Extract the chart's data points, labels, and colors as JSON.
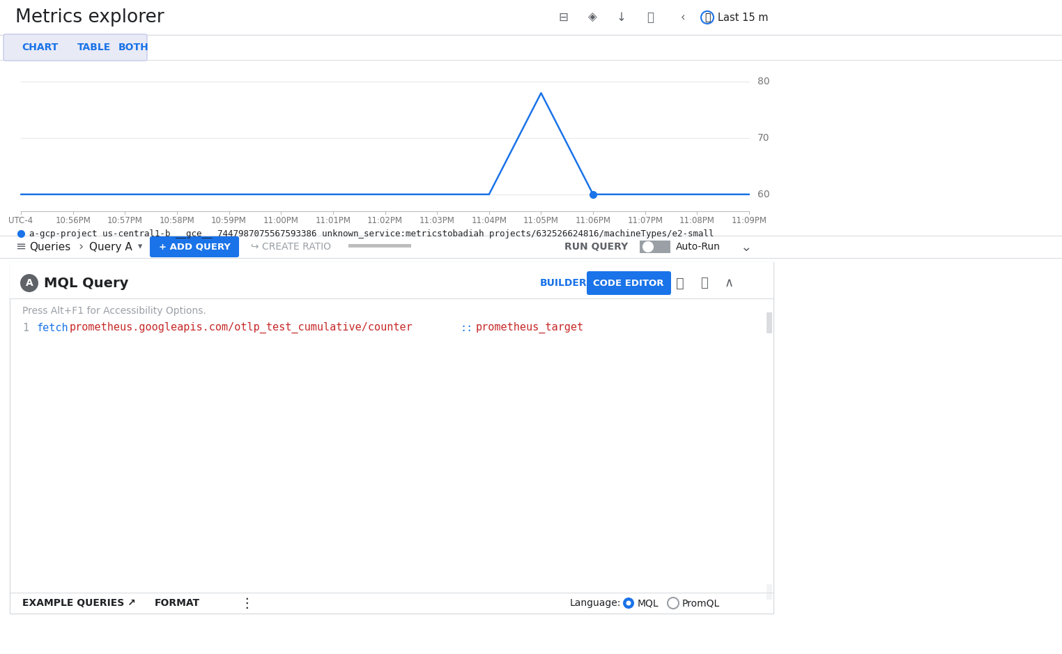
{
  "title": "Metrics explorer",
  "bg_color": "#ffffff",
  "title_color": "#202124",
  "tab_labels": [
    "CHART",
    "TABLE",
    "BOTH"
  ],
  "tab_text_color": "#1a73e8",
  "active_tab_bg": "#e8eaf6",
  "active_tab_border": "#c5cae9",
  "x_labels": [
    "UTC-4",
    "10:56PM",
    "10:57PM",
    "10:58PM",
    "10:59PM",
    "11:00PM",
    "11:01PM",
    "11:02PM",
    "11:03PM",
    "11:04PM",
    "11:05PM",
    "11:06PM",
    "11:07PM",
    "11:08PM",
    "11:09PM"
  ],
  "y_data": [
    60,
    60,
    60,
    60,
    60,
    60,
    60,
    60,
    60,
    60,
    78,
    60,
    60,
    60,
    60
  ],
  "line_color": "#1a73e8",
  "dot_index": 11,
  "dot_value": 60,
  "y_ticks": [
    60,
    70,
    80
  ],
  "y_min": 57,
  "y_max": 83,
  "grid_color": "#e8e8e8",
  "legend_dot_color": "#1a73e8",
  "legend_text": "a-gcp-project us-central1-b __gce__ 7447987075567593386 unknown_service:metricstobadiah projects/632526624816/machineTypes/e2-small",
  "queries_label": "Queries",
  "query_a_label": "Query A",
  "add_query_label": "+ ADD QUERY",
  "create_ratio_label": "↪ CREATE RATIO",
  "run_query_label": "RUN QUERY",
  "auto_run_label": "Auto-Run",
  "mql_circle_bg": "#5f6368",
  "mql_title": "MQL Query",
  "builder_label": "BUILDER",
  "code_editor_label": "CODE EDITOR",
  "code_editor_bg": "#1a73e8",
  "accessibility_text": "Press Alt+F1 for Accessibility Options.",
  "code_line_number": "1",
  "code_keyword": "fetch",
  "code_keyword_color": "#1a73e8",
  "code_path": "prometheus.googleapis.com/otlp_test_cumulative/counter",
  "code_path_color": "#c62828",
  "code_separator": "::",
  "code_separator_color": "#1a73e8",
  "code_target": "prometheus_target",
  "code_target_color": "#c62828",
  "example_queries_label": "EXAMPLE QUERIES ↗",
  "format_label": "FORMAT",
  "language_label": "Language:",
  "mql_radio_label": "MQL",
  "promql_radio_label": "PromQL",
  "last_label": "Last 15 m"
}
